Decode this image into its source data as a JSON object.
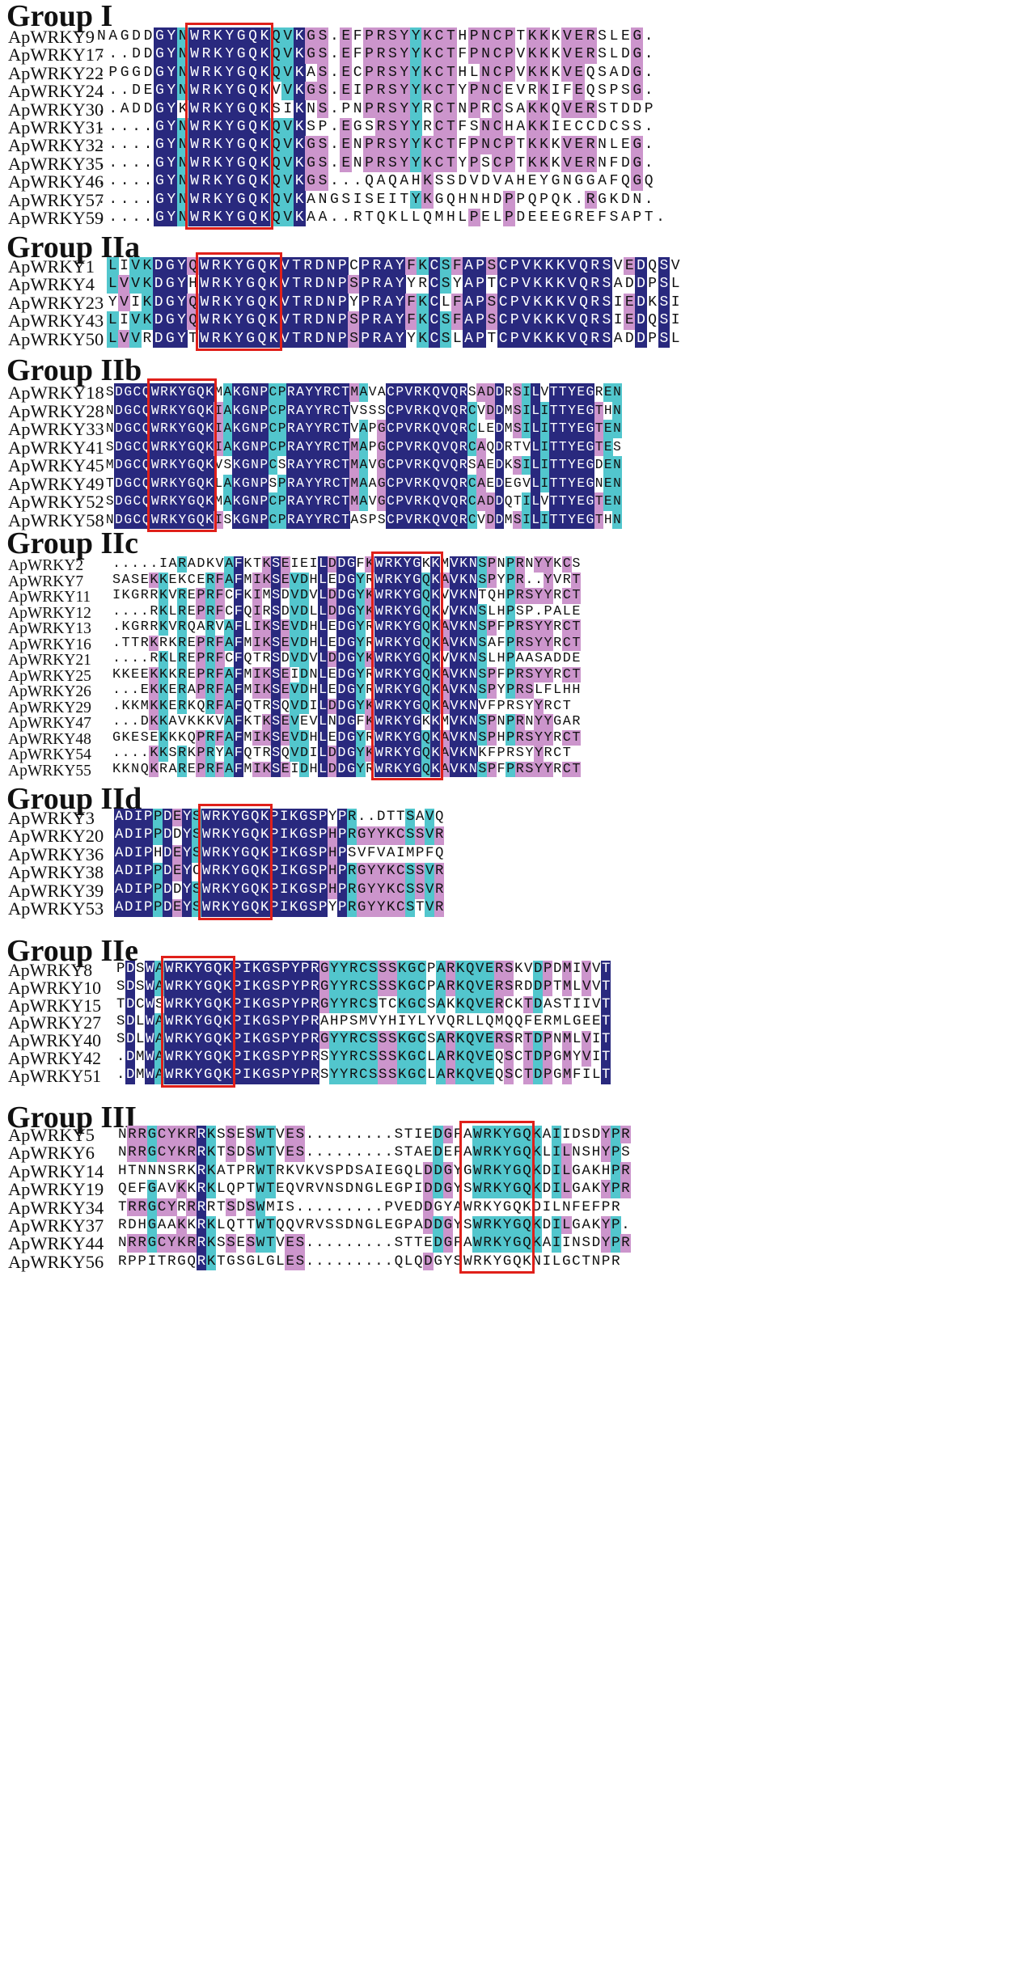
{
  "groups": [
    {
      "title": "Group I",
      "sequences": [
        {
          "name": "ApWRKY9",
          "seq": "NAGDDGYNWRKYGQKQVKGS.EFPRSYYKCTHPNCPTKKKVERSLEG."
        },
        {
          "name": "ApWRKY17",
          "seq": "...DDGYNWRKYGQKQVKGS.EFPRSYYKCTFPNCPVKKKVERSLDG."
        },
        {
          "name": "ApWRKY22",
          "seq": ".PGGDGYNWRKYGQKQVKAS.ECPRSYYKCTHLNCPVKKKVEQSADG."
        },
        {
          "name": "ApWRKY24",
          "seq": "...DEGYNWRKYGQKVVKGS.EIPRSYYKCTYPNCEVRKIFEQSPSG."
        },
        {
          "name": "ApWRKY30",
          "seq": "..ADDGYKWRKYGQKSIKNS.PNPRSYYRCTNPRCSAKKQVERSTDDP"
        },
        {
          "name": "ApWRKY31",
          "seq": ".....GYNWRKYGQKQVKSP.EGSRSYYRCTFSNCHAKKIECCDCSS."
        },
        {
          "name": "ApWRKY32",
          "seq": ".....GYNWRKYGQKQVKGS.ENPRSYYKCTFPNCPTKKKVERNLEG."
        },
        {
          "name": "ApWRKY35",
          "seq": ".....GYNWRKYGQKQVKGS.ENPRSYYKCTYPSCPTKKKVERNFDG."
        },
        {
          "name": "ApWRKY46",
          "seq": ".....GYNWRKYGQKQVKGS...QAQAHKSSDVDVAHEYGNGGAFQGQ"
        },
        {
          "name": "ApWRKY57",
          "seq": ".....GYNWRKYGQKQVKANGSISEITYKGQHNHDPPQPQK.RGKDN."
        },
        {
          "name": "ApWRKY59",
          "seq": ".....GYNWRKYGQKQVKAA..RTQKLLQMHLPELPDEEEGREFSAPT."
        }
      ]
    },
    {
      "title": "Group IIa",
      "sequences": [
        {
          "name": "ApWRKY1",
          "seq": "LIVKDGYQWRKYGQKVTRDNPCPRAYFKCSFAPSCPVKKKVQRSVEDQSV"
        },
        {
          "name": "ApWRKY4",
          "seq": "LVVKDGYHWRKYGQKVTRDNPSPRAYYRCSYAPTCPVKKKVQRSADDPSL"
        },
        {
          "name": "ApWRKY23",
          "seq": "YVIKDGYQWRKYGQKVTRDNPYPRAYFKCLFAPSCPVKKKVQRSIEDKSI"
        },
        {
          "name": "ApWRKY43",
          "seq": "LIVKDGYQWRKYGQKVTRDNPSPRAYFKCSFAPSCPVKKKVQRSIEDQSI"
        },
        {
          "name": "ApWRKY50",
          "seq": "LVVRDGYTWRKYGQKVTRDNPSPRAYYKCSLAPTCPVKKKVQRSADDPSL"
        }
      ]
    },
    {
      "title": "Group IIb",
      "sequences": [
        {
          "name": "ApWRKY18",
          "seq": "SDGCQWRKYGQKMAKGNPCPRAYYRCTMAVACPVRKQVQRSADDRSILVTTYEGREN"
        },
        {
          "name": "ApWRKY28",
          "seq": "NDGCQWRKYGQKIAKGNPCPRAYYRCTVSSSCPVRKQVQRCVDDMSILITTYEGTHN"
        },
        {
          "name": "ApWRKY33",
          "seq": "NDGCQWRKYGQKIAKGNPCPRAYYRCTVAPGCPVRKQVQRCLEDMSILITTYEGTEN"
        },
        {
          "name": "ApWRKY41",
          "seq": "SDGCQWRKYGQKIAKGNPCPRAYYRCTMAPGCPVRKQVQRCAQDRTVLITTYEGTES"
        },
        {
          "name": "ApWRKY45",
          "seq": "MDGCQWRKYGQKVSKGNPCSRAYYRCTMAVGCPVRKQVQRSAEDKSILITTYEGDEN"
        },
        {
          "name": "ApWRKY49",
          "seq": "TDGCQWRKYGQKLAKGNPSPRAYYRCTMAAGCPVRKQVQRCAEDEGVLITTYEGNEN"
        },
        {
          "name": "ApWRKY52",
          "seq": "SDGCQWRKYGQKMAKGNPCPRAYYRCTMAVGCPVRKQVQRCADDQTILVTTYEGTEN"
        },
        {
          "name": "ApWRKY58",
          "seq": "NDGCQWRKYGQKISKGNPCPRAYYRCTASPSCPVRKQVQRCVDDMSILITTYEGTHN"
        }
      ]
    },
    {
      "title": "Group IIc",
      "sequences": [
        {
          "name": "ApWRKY2",
          "seq": ".....IARADKVAFKTKSEIEILDDGFKWRKYGKKMVKNSPNPRNYYKCS"
        },
        {
          "name": "ApWRKY7",
          "seq": "SASEKKEKCERFAFMIKSEVDHLEDGYRWRKYGQKAVKNSPYPR..YVRT"
        },
        {
          "name": "ApWRKY11",
          "seq": "IKGRRKVREPRFCFKIMSDVDVLDDGYKWRKYGQKVVKNTQHPRSYYRCT"
        },
        {
          "name": "ApWRKY12",
          "seq": "....RKLREPRFCFQIRSDVDLLDDGYKWRKYGQKVVKNSLHPSP.PALE"
        },
        {
          "name": "ApWRKY13",
          "seq": ".KGRRKVRQARVAFLIKSEVDHLEDGYRWRKYGQKAVKNSPFPRSYYRCT"
        },
        {
          "name": "ApWRKY16",
          "seq": ".TTRKRKREPRFAFMIKSEVDHLEDGYRWRKYGQKAVKNSAFPRSYYRCT"
        },
        {
          "name": "ApWRKY21",
          "seq": "....RKLREPRFCFQTRSDVDVLDDGYKWRKYGQKVVKNSLHPAASADDE"
        },
        {
          "name": "ApWRKY25",
          "seq": "KKEEKKKREPRFAFMIKSEIDNLEDGYRWRKYGQKAVKNSPFPRSYYRCT"
        },
        {
          "name": "ApWRKY26",
          "seq": "...EKKERAPRFAFMIKSEVDHLEDGYRWRKYGQKAVKNSPYPRSLFLHH"
        },
        {
          "name": "ApWRKY29",
          "seq": ".KKMKKERKQRFAFQTRSQVDILDDGYKWRKYGQKAVKNVFPRSYYRCT"
        },
        {
          "name": "ApWRKY47",
          "seq": "...DKKAVKKKVAFKTKSEVEVLNDGFKWRKYGKKMVKNSPNPRNYYGAR"
        },
        {
          "name": "ApWRKY48",
          "seq": "GKESEKKKQPRFAFMIKSEVDHLEDGYRWRKYGQKAVKNSPHPRSYYRCT"
        },
        {
          "name": "ApWRKY54",
          "seq": "....KKSRKPRYAFQTRSQVDILDDGYKWRKYGQKAVKNKFPRSYYRCT"
        },
        {
          "name": "ApWRKY55",
          "seq": "KKNQKRAREPRFAFMIKSEIDHLDDGYRWRKYGQKAVKNSPFPRSYYRCT"
        }
      ]
    },
    {
      "title": "Group IId",
      "sequences": [
        {
          "name": "ApWRKY3",
          "seq": "ADIPPDEYSWRKYGQKPIKGSPYPR..DTTSAVQ"
        },
        {
          "name": "ApWRKY20",
          "seq": "ADIPPDDYSWRKYGQKPIKGSPHPRGYYKCSSVR"
        },
        {
          "name": "ApWRKY36",
          "seq": "ADIPHDEYSWRKYGQKPIKGSPHPSVFVAIMPFQ"
        },
        {
          "name": "ApWRKY38",
          "seq": "ADIPPDEYCWRKYGQKPIKGSPHPRGYYKCSSVR"
        },
        {
          "name": "ApWRKY39",
          "seq": "ADIPPDDYSWRKYGQKPIKGSPHPRGYYKCSSVR"
        },
        {
          "name": "ApWRKY53",
          "seq": "ADIPPDEYSWRKYGQKPIKGSPYPRGYYKCSTVR"
        }
      ]
    },
    {
      "title": "Group IIe",
      "sequences": [
        {
          "name": "ApWRKY8",
          "seq": "PDSWAWRKYGQKPIKGSPYPRGYYRCSSSKGCPARKQVERSKVDPDMIVVT"
        },
        {
          "name": "ApWRKY10",
          "seq": "SDSWAWRKYGQKPIKGSPYPRGYYRCSSSKGCPARKQVERSRDDPTMLVVT"
        },
        {
          "name": "ApWRKY15",
          "seq": "TDCWSWRKYGQKPIKGSPYPRGYYRCSTCKGCSAKKQVERCKTDASTIIVT"
        },
        {
          "name": "ApWRKY27",
          "seq": "SDLWAWRKYGQKPIKGSPYPRAHPSMVYHIYLYVQRLLQMQQFERMLGEET"
        },
        {
          "name": "ApWRKY40",
          "seq": "SDLWAWRKYGQKPIKGSPYPRGYYRCSSSKGCSARKQVERSRTDPNMLVIT"
        },
        {
          "name": "ApWRKY42",
          "seq": ".DMWAWRKYGQKPIKGSPYPRSYYRCSSSKGCLARKQVEQSCTDPGMYVIT"
        },
        {
          "name": "ApWRKY51",
          "seq": ".DMWAWRKYGQKPIKGSPYPRSYYRCSSSKGCLARKQVEQSCTDPGMFILT"
        }
      ]
    },
    {
      "title": "Group III",
      "sequences": [
        {
          "name": "ApWRKY5",
          "seq": "NRRGCYKRRKSSESWTVES.........STIEDGFAWRKYGQKAIIDSDYPR"
        },
        {
          "name": "ApWRKY6",
          "seq": "NRRGCYKRRKTSDSWTVES.........STAEDEFAWRKYGQKLILNSHYPS"
        },
        {
          "name": "ApWRKY14",
          "seq": "HTNNNSRKRKATPRWTRKVKVSPDSAIEGQLDDGYGWRKYGQKDILGAKHPR"
        },
        {
          "name": "ApWRKY19",
          "seq": "QEFGAVKKRKLQPTWTEQVRVNSDNGLEGPIDDGYSWRKYGQKDILGAKYPR"
        },
        {
          "name": "ApWRKY34",
          "seq": "TRRGCYRRRRTSDSWMIS.........PVEDDGYAWRKYGQKDILNFEFPR"
        },
        {
          "name": "ApWRKY37",
          "seq": "RDHGAAKKRKLQTTWTQQVRVSSDNGLEGPADDGYSWRKYGQKDILGAKYP."
        },
        {
          "name": "ApWRKY44",
          "seq": "NRRGCYKRRKSSESWTVES.........STTEDGFAWRKYGQKAIINSDYPR"
        },
        {
          "name": "ApWRKY56",
          "seq": "RPPITRGQRKTGSGLGLES.........QLQDGYSWRKYGQKNILGCTNPR"
        }
      ]
    }
  ],
  "colors": {
    "identical": "#29297e",
    "high_similarity": "#52c6cd",
    "medium_similarity": "#cc95cc",
    "motif_box": "#e0201a",
    "gap_shade": "#ececec"
  }
}
